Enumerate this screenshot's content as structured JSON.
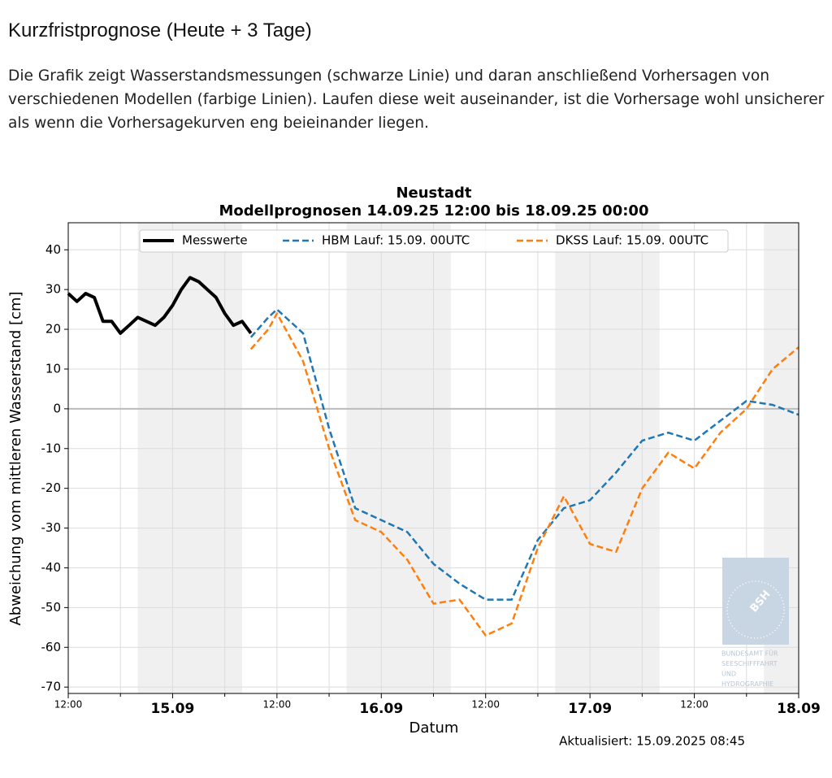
{
  "page": {
    "heading": "Kurzfristprognose (Heute + 3 Tage)",
    "intro": "Die Grafik zeigt Wasserstandsmessungen (schwarze Linie) und daran anschließend Vorhersagen von verschiedenen Modellen (farbige Linien). Laufen diese weit auseinander, ist die Vorhersage wohl unsicherer als wenn die Vorhersagekurven eng beieinander liegen."
  },
  "chart_data": {
    "type": "line",
    "title": "Neustadt",
    "subtitle": "Modellprognosen 14.09.25 12:00 bis 18.09.25 00:00",
    "x_label": "Datum",
    "y_label": "Abweichung vom mittleren Wasserstand [cm]",
    "annotation": "Aktualisiert: 15.09.2025 08:45",
    "watermark": {
      "logo": "BSH",
      "lines": [
        "BUNDESAMT FÜR",
        "SEESCHIFFFAHRT",
        "UND",
        "HYDROGRAPHIE"
      ]
    },
    "xlim": [
      "14.09.25 12:00",
      "18.09.25 00:00"
    ],
    "ylim": [
      -71.6,
      46.8
    ],
    "yticks": [
      -70,
      -60,
      -50,
      -40,
      -30,
      -20,
      -10,
      0,
      10,
      20,
      30,
      40
    ],
    "xticks": [
      {
        "value": "14.09.25 12:00",
        "label": "12:00"
      },
      {
        "value": "15.09.25 00:00",
        "label": "15.09"
      },
      {
        "value": "15.09.25 12:00",
        "label": "12:00"
      },
      {
        "value": "16.09.25 00:00",
        "label": "16.09"
      },
      {
        "value": "16.09.25 12:00",
        "label": "12:00"
      },
      {
        "value": "17.09.25 00:00",
        "label": "17.09"
      },
      {
        "value": "17.09.25 12:00",
        "label": "12:00"
      },
      {
        "value": "18.09.25 00:00",
        "label": "18.09"
      }
    ],
    "xminorticks": [
      "14.09.25 18:00",
      "15.09.25 06:00",
      "15.09.25 18:00",
      "16.09.25 06:00",
      "16.09.25 18:00",
      "17.09.25 06:00",
      "17.09.25 18:00"
    ],
    "shaded_periods": [
      [
        "14.09.25 20:00",
        "15.09.25 08:00"
      ],
      [
        "15.09.25 20:00",
        "16.09.25 08:00"
      ],
      [
        "16.09.25 20:00",
        "17.09.25 08:00"
      ],
      [
        "17.09.25 20:00",
        "18.09.25 00:00"
      ]
    ],
    "grid": true,
    "zero_line": true,
    "legend": "top",
    "series": [
      {
        "name": "Messwerte",
        "color": "#000000",
        "dashed": false,
        "x": [
          "14.09.25 12:00",
          "14.09.25 13:00",
          "14.09.25 14:00",
          "14.09.25 15:00",
          "14.09.25 16:00",
          "14.09.25 17:00",
          "14.09.25 18:00",
          "14.09.25 19:00",
          "14.09.25 20:00",
          "14.09.25 21:00",
          "14.09.25 22:00",
          "14.09.25 23:00",
          "15.09.25 00:00",
          "15.09.25 01:00",
          "15.09.25 02:00",
          "15.09.25 03:00",
          "15.09.25 04:00",
          "15.09.25 05:00",
          "15.09.25 06:00",
          "15.09.25 07:00",
          "15.09.25 08:00",
          "15.09.25 09:00"
        ],
        "values": [
          29,
          27,
          29,
          28,
          22,
          22,
          19,
          21,
          23,
          22,
          21,
          23,
          26,
          30,
          33,
          32,
          30,
          28,
          24,
          21,
          22,
          19
        ]
      },
      {
        "name": "HBM Lauf: 15.09. 00UTC",
        "color": "#1f77b4",
        "dashed": true,
        "x": [
          "15.09.25 09:00",
          "15.09.25 11:00",
          "15.09.25 12:00",
          "15.09.25 15:00",
          "15.09.25 18:00",
          "15.09.25 21:00",
          "16.09.25 00:00",
          "16.09.25 03:00",
          "16.09.25 06:00",
          "16.09.25 09:00",
          "16.09.25 12:00",
          "16.09.25 15:00",
          "16.09.25 18:00",
          "16.09.25 21:00",
          "17.09.25 00:00",
          "17.09.25 03:00",
          "17.09.25 06:00",
          "17.09.25 09:00",
          "17.09.25 12:00",
          "17.09.25 15:00",
          "17.09.25 18:00",
          "17.09.25 21:00",
          "18.09.25 00:00"
        ],
        "values": [
          18,
          23,
          25,
          19,
          -5,
          -25,
          -28,
          -31,
          -39,
          -44,
          -48,
          -48,
          -33,
          -25,
          -23,
          -16,
          -8,
          -6,
          -8,
          -3,
          2,
          1,
          -1.5
        ]
      },
      {
        "name": "DKSS Lauf: 15.09. 00UTC",
        "color": "#ff7f0e",
        "dashed": true,
        "x": [
          "15.09.25 09:00",
          "15.09.25 11:00",
          "15.09.25 12:00",
          "15.09.25 15:00",
          "15.09.25 18:00",
          "15.09.25 21:00",
          "16.09.25 00:00",
          "16.09.25 03:00",
          "16.09.25 06:00",
          "16.09.25 09:00",
          "16.09.25 12:00",
          "16.09.25 15:00",
          "16.09.25 18:00",
          "16.09.25 21:00",
          "17.09.25 00:00",
          "17.09.25 03:00",
          "17.09.25 06:00",
          "17.09.25 09:00",
          "17.09.25 12:00",
          "17.09.25 15:00",
          "17.09.25 18:00",
          "17.09.25 21:00",
          "18.09.25 00:00"
        ],
        "values": [
          15,
          20,
          24,
          12,
          -10,
          -28,
          -31,
          -38,
          -49,
          -48,
          -57,
          -54,
          -35,
          -22,
          -34,
          -36,
          -20,
          -11,
          -15,
          -6,
          0,
          10,
          15.5
        ]
      }
    ]
  }
}
